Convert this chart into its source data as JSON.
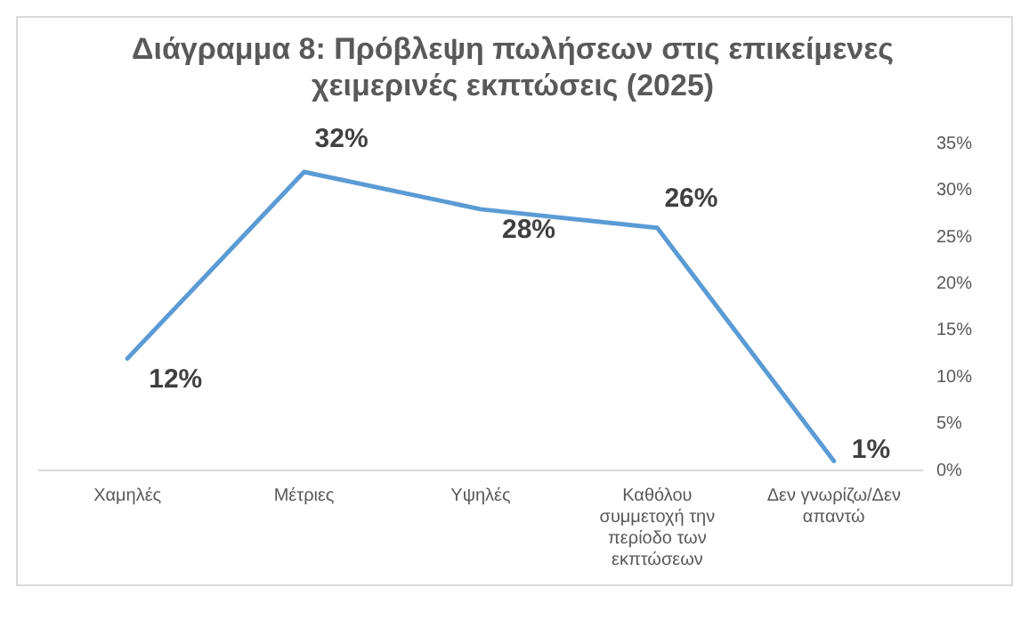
{
  "chart_data": {
    "type": "line",
    "title": "Διάγραμμα 8: Πρόβλεψη πωλήσεων στις επικείμενες χειμερινές εκπτώσεις (2025)",
    "categories": [
      "Χαμηλές",
      "Μέτριες",
      "Υψηλές",
      "Καθόλου συμμετοχή την περίοδο των εκπτώσεων",
      "Δεν γνωρίζω/Δεν απαντώ"
    ],
    "series": [
      {
        "color": "#5b9bd5",
        "values": [
          12,
          32,
          28,
          26,
          1
        ],
        "value_labels": [
          "12%",
          "32%",
          "28%",
          "26%",
          "1%"
        ]
      }
    ],
    "ylim": [
      0,
      35
    ],
    "yticks": [
      {
        "value": 0,
        "label": "0%"
      },
      {
        "value": 5,
        "label": "5%"
      },
      {
        "value": 10,
        "label": "10%"
      },
      {
        "value": 15,
        "label": "15%"
      },
      {
        "value": 20,
        "label": "20%"
      },
      {
        "value": 25,
        "label": "25%"
      },
      {
        "value": 30,
        "label": "30%"
      },
      {
        "value": 35,
        "label": "35%"
      }
    ],
    "grid": false,
    "legend": false,
    "marker": "none",
    "line_style": "solid"
  }
}
